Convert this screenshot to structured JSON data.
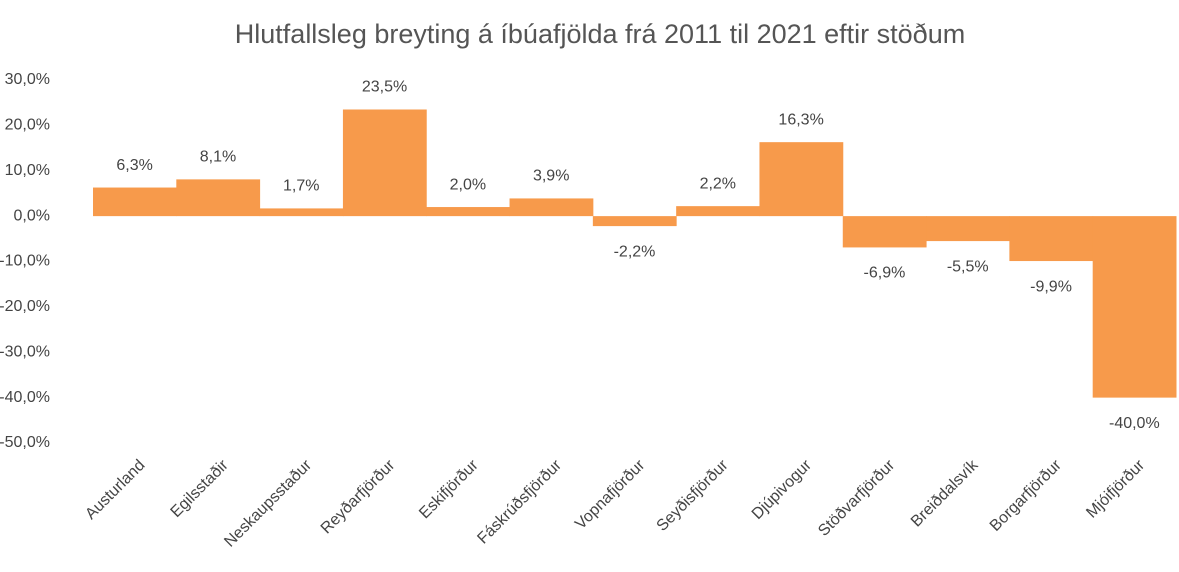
{
  "chart_data": {
    "type": "bar",
    "title": "Hlutfallsleg breyting á íbúafjölda frá 2011 til 2021 eftir stöðum",
    "categories": [
      "Austurland",
      "Egilsstaðir",
      "Neskaupsstaður",
      "Reyðarfjörður",
      "Eskifjörður",
      "Fáskrúðsfjörður",
      "Vopnafjörður",
      "Seyðisfjörður",
      "Djúpivogur",
      "Stöðvarfjörður",
      "Breiðdalsvík",
      "Borgarfjörður",
      "Mjóifjörður"
    ],
    "values": [
      6.3,
      8.1,
      1.7,
      23.5,
      2.0,
      3.9,
      -2.2,
      2.2,
      16.3,
      -6.9,
      -5.5,
      -9.9,
      -40.0
    ],
    "value_labels": [
      "6,3%",
      "8,1%",
      "1,7%",
      "23,5%",
      "2,0%",
      "3,9%",
      "-2,2%",
      "2,2%",
      "16,3%",
      "-6,9%",
      "-5,5%",
      "-9,9%",
      "-40,0%"
    ],
    "color": "#f79a4b",
    "ylim": [
      -50,
      30
    ],
    "yticks": [
      {
        "value": 30,
        "label": "30,0%"
      },
      {
        "value": 20,
        "label": "20,0%"
      },
      {
        "value": 10,
        "label": "10,0%"
      },
      {
        "value": 0,
        "label": "0,0%"
      },
      {
        "value": -10,
        "label": "-10,0%"
      },
      {
        "value": -20,
        "label": "-20,0%"
      },
      {
        "value": -30,
        "label": "-30,0%"
      },
      {
        "value": -40,
        "label": "-40,0%"
      },
      {
        "value": -50,
        "label": "-50,0%"
      }
    ],
    "grid": false
  }
}
